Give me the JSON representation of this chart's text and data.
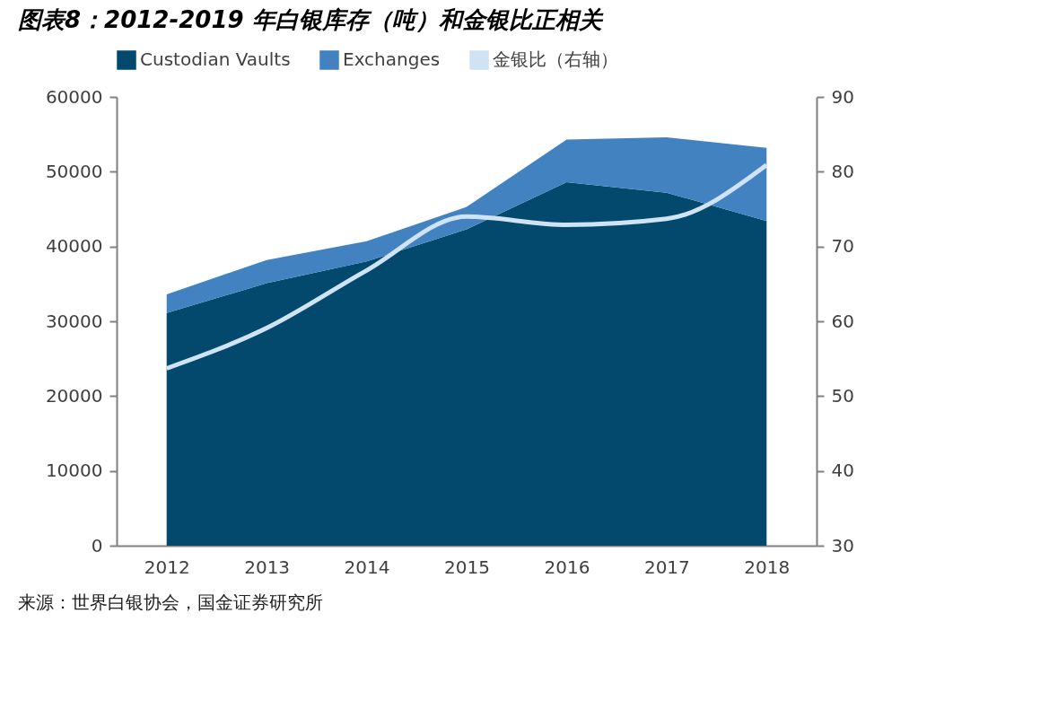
{
  "chart_data": {
    "type": "area",
    "title": "图表8：2012-2019 年白银库存（吨）和金银比正相关",
    "categories": [
      "2012",
      "2013",
      "2014",
      "2015",
      "2016",
      "2017",
      "2018"
    ],
    "stacked": true,
    "series": [
      {
        "name": "Custodian Vaults",
        "color": "#02496d",
        "values": [
          31100,
          35100,
          38000,
          42300,
          48600,
          47200,
          43400
        ]
      },
      {
        "name": "Exchanges",
        "color": "#4382c1",
        "values": [
          2500,
          3100,
          2700,
          3000,
          5700,
          7400,
          9800
        ]
      },
      {
        "name": "金银比（右轴）",
        "color": "#cfe3f3",
        "type": "line",
        "axis": "y2",
        "values": [
          53.7,
          59.1,
          66.8,
          74.0,
          72.9,
          73.7,
          80.9
        ]
      }
    ],
    "ylim": [
      0,
      60000
    ],
    "yticks": [
      0,
      10000,
      20000,
      30000,
      40000,
      50000,
      60000
    ],
    "y2lim": [
      30,
      90
    ],
    "y2ticks": [
      30,
      40,
      50,
      60,
      70,
      80,
      90
    ],
    "grid": false,
    "legend": "top",
    "marker": "none",
    "line_style": "solid",
    "annotations": [
      "来源：世界白银协会，国金证券研究所"
    ]
  }
}
